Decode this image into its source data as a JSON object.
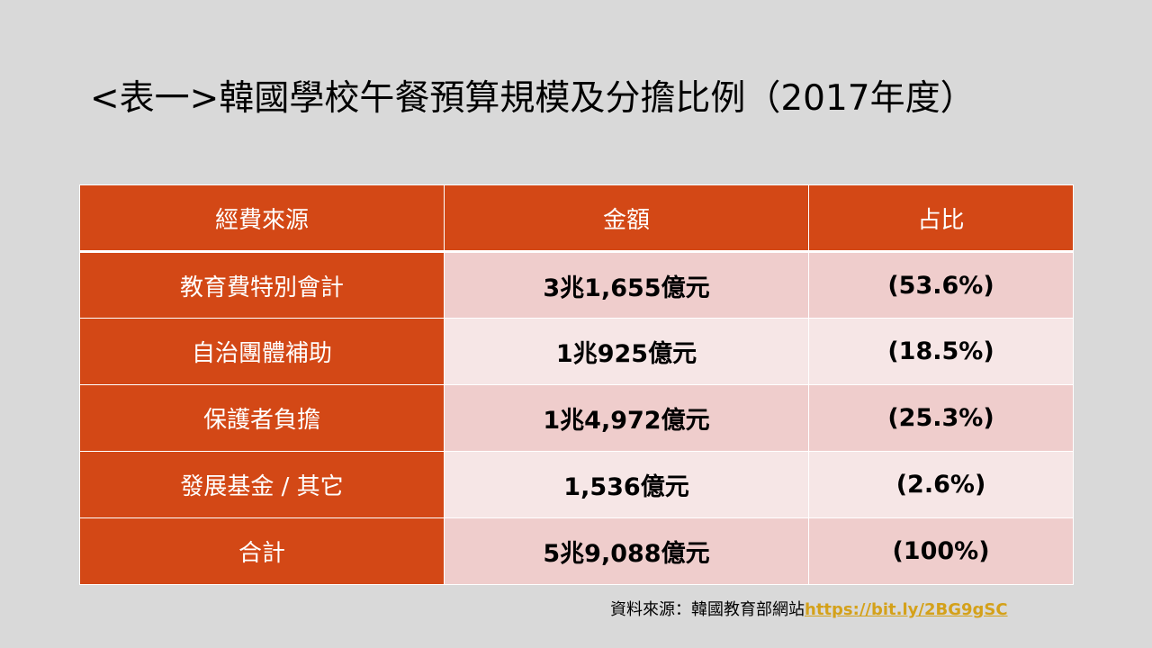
{
  "title": "<表一>韓國學校午餐預算規模及分擔比例（2017年度）",
  "table": {
    "headers": [
      "經費來源",
      "金額",
      "占比"
    ],
    "rows": [
      {
        "source": "教育費特別會計",
        "amount": "3兆1,655億元",
        "share": "(53.6%)"
      },
      {
        "source": "自治團體補助",
        "amount": "1兆925億元",
        "share": "(18.5%)"
      },
      {
        "source": "保護者負擔",
        "amount": "1兆4,972億元",
        "share": "(25.3%)"
      },
      {
        "source": "發展基金 / 其它",
        "amount": "1,536億元",
        "share": "(2.6%)"
      },
      {
        "source": "合計",
        "amount": "5兆9,088億元",
        "share": "(100%)"
      }
    ]
  },
  "footer": {
    "source_label": "資料來源：韓國教育部網站",
    "source_link": "https://bit.ly/2BG9gSC"
  },
  "colors": {
    "background": "#d9d9d9",
    "header_fill": "#d34816",
    "row_fill_dark": "#efcdcc",
    "row_fill_light": "#f6e6e6",
    "link": "#d4a11a"
  }
}
